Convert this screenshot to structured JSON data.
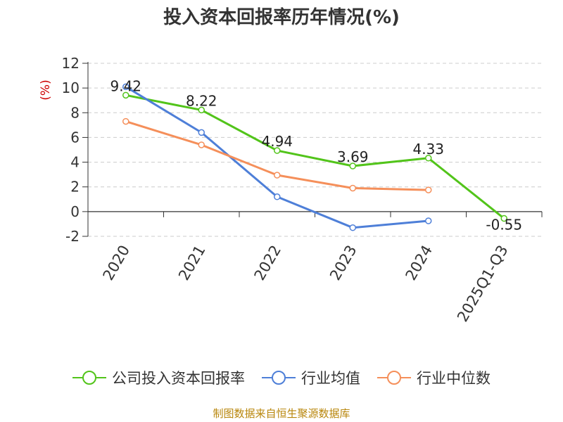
{
  "title": "投入资本回报率历年情况(%)",
  "source": "制图数据来自恒生聚源数据库",
  "chart_data": {
    "type": "line",
    "title": "投入资本回报率历年情况(%)",
    "ylabel": "(%)",
    "ylim": [
      -2,
      12
    ],
    "yticks": [
      "12",
      "10",
      "8",
      "6",
      "4",
      "2",
      "0",
      "-2"
    ],
    "categories": [
      "2020",
      "2021",
      "2022",
      "2023",
      "2024",
      "2025Q1-Q3"
    ],
    "grid": true,
    "legend_position": "bottom",
    "series": [
      {
        "name": "公司投入资本回报率",
        "color": "#52c41a",
        "values": [
          9.42,
          8.22,
          4.94,
          3.69,
          4.33,
          -0.55
        ],
        "labels": [
          "9.42",
          "8.22",
          "4.94",
          "3.69",
          "4.33",
          "-0.55"
        ]
      },
      {
        "name": "行业均值",
        "color": "#4e7fd8",
        "values": [
          10.1,
          6.4,
          1.2,
          -1.3,
          -0.75,
          null
        ]
      },
      {
        "name": "行业中位数",
        "color": "#f58f5a",
        "values": [
          7.3,
          5.4,
          2.95,
          1.9,
          1.75,
          null
        ]
      }
    ]
  }
}
